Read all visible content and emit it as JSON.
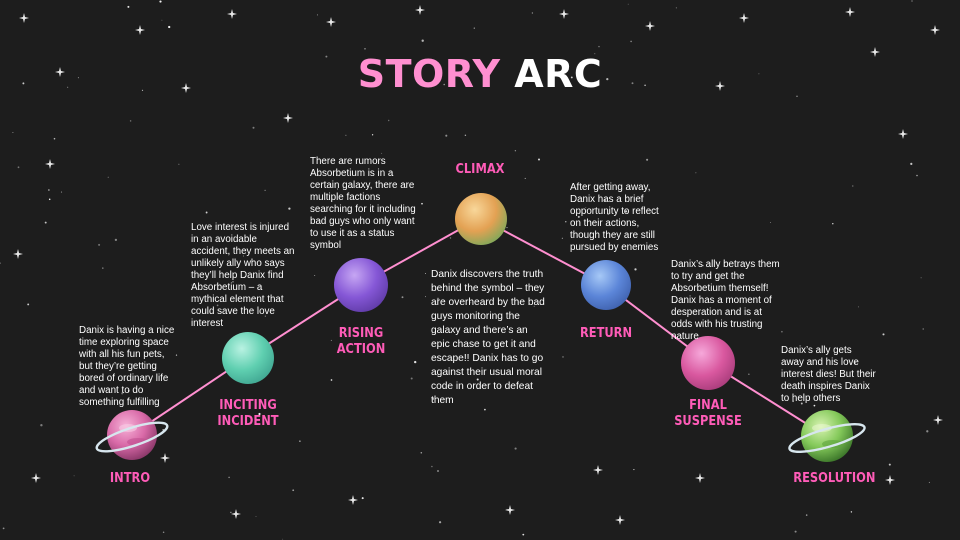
{
  "title": {
    "part1": "STORY",
    "part2": "ARC"
  },
  "colors": {
    "background": "#1d1d1d",
    "accent_pink": "#ff5cb8",
    "title_pink": "#ff8fd0",
    "arc_line": "#ff8fd0",
    "text": "#ffffff"
  },
  "stages": [
    {
      "label_lines": [
        "INTRO"
      ],
      "planet": "pink-ringed-planet",
      "description": "Danix is having a nice time exploring space with all his fun pets, but they’re getting bored of ordinary life and want to do something fulfilling"
    },
    {
      "label_lines": [
        "INCITING",
        "INCIDENT"
      ],
      "planet": "teal-planet",
      "description": "Love interest is injured in an avoidable accident, they meets an unlikely ally who says they’ll help Danix find Absorbetium – a mythical element that could save the love interest"
    },
    {
      "label_lines": [
        "RISING",
        "ACTION"
      ],
      "planet": "purple-planet",
      "description": "There are rumors Absorbetium is in a certain galaxy, there are multiple factions searching for it including bad guys who only want to use it as a status symbol"
    },
    {
      "label_lines": [
        "CLIMAX"
      ],
      "planet": "orange-green-planet",
      "description": "Danix discovers the truth behind the symbol – they are overheard by the bad guys monitoring the galaxy and there’s an epic chase to get it and escape!! Danix has to go against their usual moral code in order to defeat them"
    },
    {
      "label_lines": [
        "RETURN"
      ],
      "planet": "blue-planet",
      "description": "After getting away, Danix has a brief opportunity to reflect on their actions, though they are still pursued by enemies"
    },
    {
      "label_lines": [
        "FINAL",
        "SUSPENSE"
      ],
      "planet": "magenta-planet",
      "description": "Danix’s ally betrays them to try and get the Absorbetium themself! Danix has a moment of desperation and is at odds with his trusting nature"
    },
    {
      "label_lines": [
        "RESOLUTION"
      ],
      "planet": "green-ringed-planet",
      "description": "Danix’s ally gets away and his love interest dies! But their death inspires Danix to help others"
    }
  ]
}
